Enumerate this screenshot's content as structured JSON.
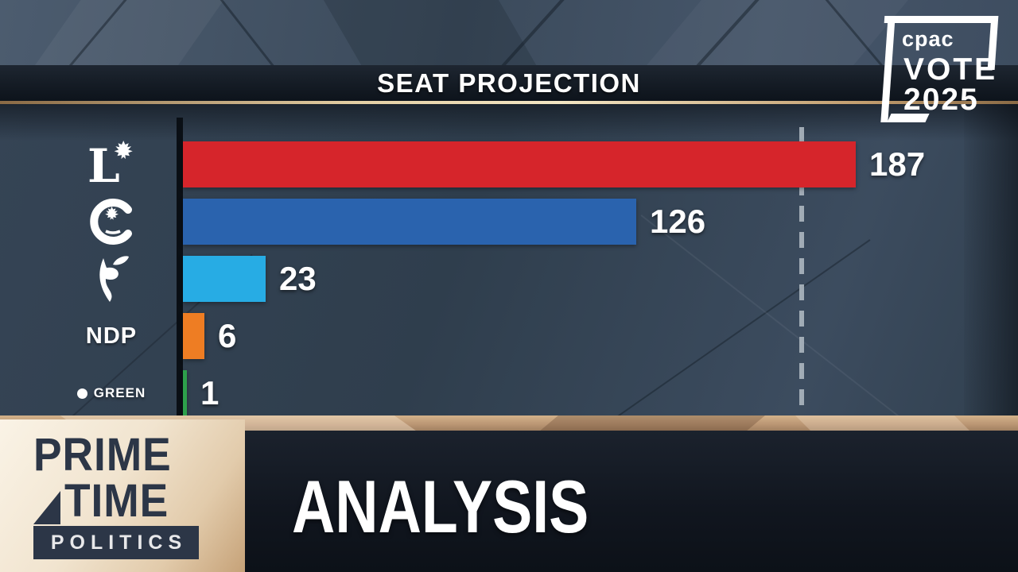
{
  "header": {
    "title": "SEAT PROJECTION"
  },
  "cpac_logo": {
    "brand": "cpac",
    "campaign": "VOTE",
    "year": "2025"
  },
  "chart_data": {
    "type": "bar",
    "orientation": "horizontal",
    "title": "SEAT PROJECTION",
    "categories": [
      "Liberal",
      "Conservative",
      "Bloc Québécois",
      "NDP",
      "Green"
    ],
    "values": [
      187,
      126,
      23,
      6,
      1
    ],
    "bar_colors": [
      "#d6252b",
      "#2a63ae",
      "#27ace4",
      "#ee7d23",
      "#2da04b"
    ],
    "xlim": [
      0,
      235
    ],
    "majority_line_seats": 172,
    "majority_line_style": "dashed-gray",
    "value_labels_shown": true,
    "legend_position": "left-icons",
    "icon_legend": [
      "liberal-logo",
      "conservative-logo",
      "bloc-quebecois-logo",
      "ndp-wordmark",
      "green-dot-label"
    ]
  },
  "parties": [
    {
      "name": "Liberal",
      "value": "187",
      "color": "#d6252b"
    },
    {
      "name": "Conservative",
      "value": "126",
      "color": "#2a63ae"
    },
    {
      "name": "Bloc Québécois",
      "value": "23",
      "color": "#27ace4"
    },
    {
      "name": "NDP",
      "value": "6",
      "color": "#ee7d23",
      "label": "NDP"
    },
    {
      "name": "Green",
      "value": "1",
      "color": "#2da04b",
      "label": "GREEN"
    }
  ],
  "lower_third": {
    "heading": "ANALYSIS"
  },
  "show_logo": {
    "line1": "PRIME",
    "line2": "TIME",
    "line3": "POLITICS"
  }
}
